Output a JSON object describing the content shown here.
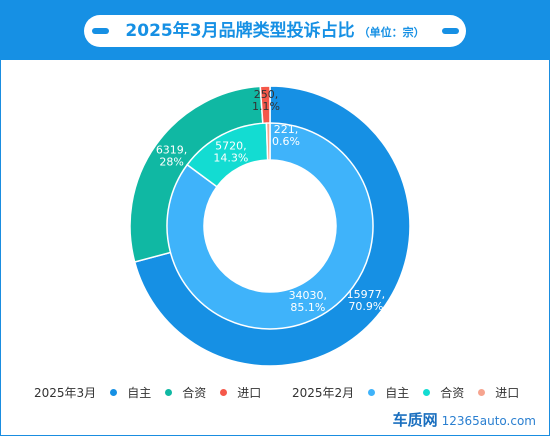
{
  "header": {
    "title": "2025年3月品牌类型投诉占比",
    "unit": "（单位：宗）"
  },
  "chart_data": {
    "type": "pie",
    "title": "2025年3月品牌类型投诉占比",
    "unit": "（单位：宗）",
    "rings": [
      {
        "period": "2025年3月",
        "position": "outer",
        "slices": [
          {
            "name": "自主",
            "value": 15977,
            "percent": "70.9%",
            "color": "#1690e4",
            "label": "15977,\n70.9%"
          },
          {
            "name": "合资",
            "value": 6319,
            "percent": "28%",
            "color": "#10b8a3",
            "label": "6319,\n28%"
          },
          {
            "name": "进口",
            "value": 250,
            "percent": "1.1%",
            "color": "#f5584a",
            "label": "250,\n1.1%"
          }
        ]
      },
      {
        "period": "2025年2月",
        "position": "inner",
        "slices": [
          {
            "name": "自主",
            "value": 34030,
            "percent": "85.1%",
            "color": "#3fb3fa",
            "label": "34030,\n85.1%"
          },
          {
            "name": "合资",
            "value": 5720,
            "percent": "14.3%",
            "color": "#13dcd2",
            "label": "5720,\n14.3%"
          },
          {
            "name": "进口",
            "value": 221,
            "percent": "0.6%",
            "color": "#f6a48f",
            "label": "221,\n0.6%"
          }
        ]
      }
    ],
    "legend_position": "bottom"
  },
  "legend": {
    "groups": [
      {
        "period": "2025年3月",
        "items": [
          {
            "label": "自主",
            "color": "#1690e4"
          },
          {
            "label": "合资",
            "color": "#10b8a3"
          },
          {
            "label": "进口",
            "color": "#f5584a"
          }
        ]
      },
      {
        "period": "2025年2月",
        "items": [
          {
            "label": "自主",
            "color": "#3fb3fa"
          },
          {
            "label": "合资",
            "color": "#13dcd2"
          },
          {
            "label": "进口",
            "color": "#f6a48f"
          }
        ]
      }
    ]
  },
  "watermark": {
    "brand": "车质网",
    "url": "12365auto.com"
  }
}
